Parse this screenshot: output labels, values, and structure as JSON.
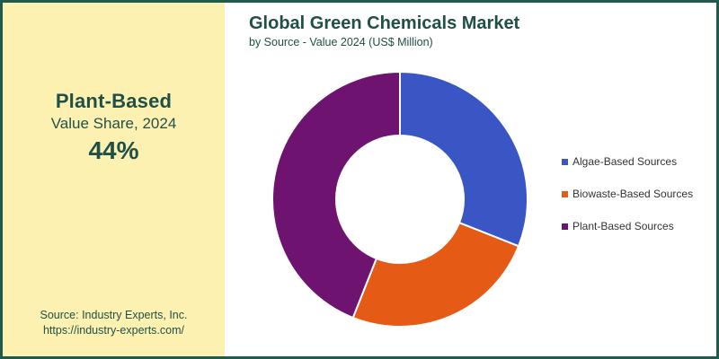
{
  "kpi": {
    "title": "Plant-Based",
    "subtitle": "Value Share, 2024",
    "value": "44%"
  },
  "source": {
    "line1": "Source: Industry Experts, Inc.",
    "line2": "https://industry-experts.com/"
  },
  "chart_data": {
    "type": "pie",
    "donut": true,
    "title": "Global Green Chemicals Market",
    "subtitle": "by Source - Value 2024 (US$ Million)",
    "legend_position": "right",
    "series": [
      {
        "name": "Algae-Based Sources",
        "value": 31,
        "color": "#3a56c4"
      },
      {
        "name": "Biowaste-Based Sources",
        "value": 25,
        "color": "#e55a14"
      },
      {
        "name": "Plant-Based Sources",
        "value": 44,
        "color": "#6e1470"
      }
    ]
  }
}
